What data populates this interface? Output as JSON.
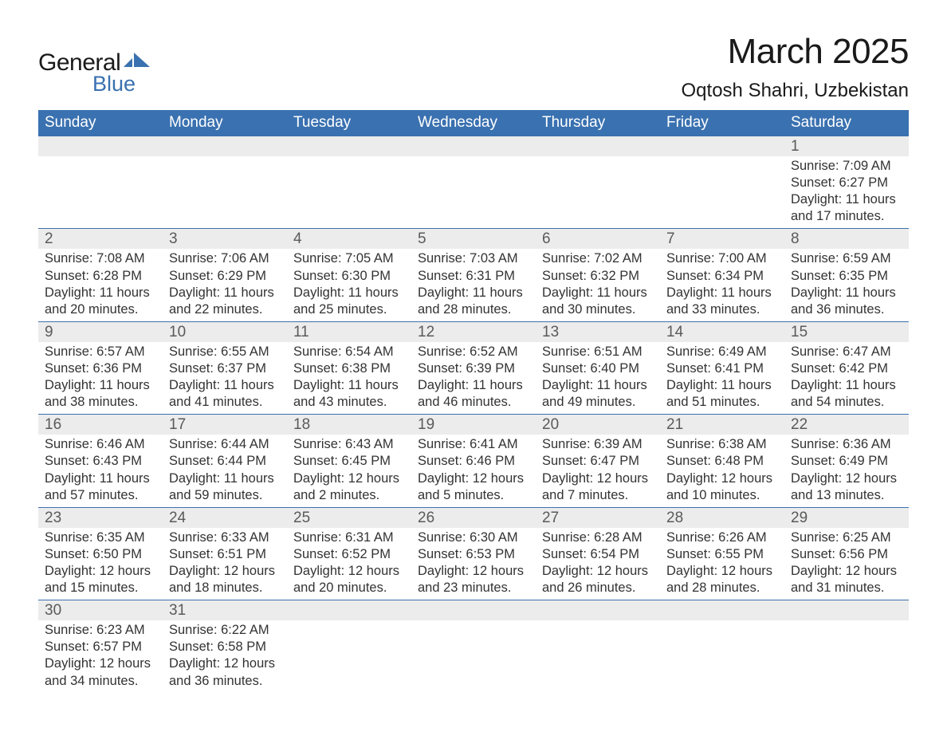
{
  "logo": {
    "text1": "General",
    "text2": "Blue",
    "shape_color": "#3a71b0"
  },
  "title": "March 2025",
  "location": "Oqtosh Shahri, Uzbekistan",
  "colors": {
    "header_bg": "#3a71b0",
    "header_text": "#ffffff",
    "daynum_bg": "#ececec",
    "body_text": "#333333",
    "border": "#3a71b0"
  },
  "fonts": {
    "title_size": 44,
    "location_size": 24,
    "header_size": 19,
    "daynum_size": 19,
    "cell_size": 16.5
  },
  "day_headers": [
    "Sunday",
    "Monday",
    "Tuesday",
    "Wednesday",
    "Thursday",
    "Friday",
    "Saturday"
  ],
  "weeks": [
    [
      null,
      null,
      null,
      null,
      null,
      null,
      {
        "n": "1",
        "sr": "Sunrise: 7:09 AM",
        "ss": "Sunset: 6:27 PM",
        "d1": "Daylight: 11 hours",
        "d2": "and 17 minutes."
      }
    ],
    [
      {
        "n": "2",
        "sr": "Sunrise: 7:08 AM",
        "ss": "Sunset: 6:28 PM",
        "d1": "Daylight: 11 hours",
        "d2": "and 20 minutes."
      },
      {
        "n": "3",
        "sr": "Sunrise: 7:06 AM",
        "ss": "Sunset: 6:29 PM",
        "d1": "Daylight: 11 hours",
        "d2": "and 22 minutes."
      },
      {
        "n": "4",
        "sr": "Sunrise: 7:05 AM",
        "ss": "Sunset: 6:30 PM",
        "d1": "Daylight: 11 hours",
        "d2": "and 25 minutes."
      },
      {
        "n": "5",
        "sr": "Sunrise: 7:03 AM",
        "ss": "Sunset: 6:31 PM",
        "d1": "Daylight: 11 hours",
        "d2": "and 28 minutes."
      },
      {
        "n": "6",
        "sr": "Sunrise: 7:02 AM",
        "ss": "Sunset: 6:32 PM",
        "d1": "Daylight: 11 hours",
        "d2": "and 30 minutes."
      },
      {
        "n": "7",
        "sr": "Sunrise: 7:00 AM",
        "ss": "Sunset: 6:34 PM",
        "d1": "Daylight: 11 hours",
        "d2": "and 33 minutes."
      },
      {
        "n": "8",
        "sr": "Sunrise: 6:59 AM",
        "ss": "Sunset: 6:35 PM",
        "d1": "Daylight: 11 hours",
        "d2": "and 36 minutes."
      }
    ],
    [
      {
        "n": "9",
        "sr": "Sunrise: 6:57 AM",
        "ss": "Sunset: 6:36 PM",
        "d1": "Daylight: 11 hours",
        "d2": "and 38 minutes."
      },
      {
        "n": "10",
        "sr": "Sunrise: 6:55 AM",
        "ss": "Sunset: 6:37 PM",
        "d1": "Daylight: 11 hours",
        "d2": "and 41 minutes."
      },
      {
        "n": "11",
        "sr": "Sunrise: 6:54 AM",
        "ss": "Sunset: 6:38 PM",
        "d1": "Daylight: 11 hours",
        "d2": "and 43 minutes."
      },
      {
        "n": "12",
        "sr": "Sunrise: 6:52 AM",
        "ss": "Sunset: 6:39 PM",
        "d1": "Daylight: 11 hours",
        "d2": "and 46 minutes."
      },
      {
        "n": "13",
        "sr": "Sunrise: 6:51 AM",
        "ss": "Sunset: 6:40 PM",
        "d1": "Daylight: 11 hours",
        "d2": "and 49 minutes."
      },
      {
        "n": "14",
        "sr": "Sunrise: 6:49 AM",
        "ss": "Sunset: 6:41 PM",
        "d1": "Daylight: 11 hours",
        "d2": "and 51 minutes."
      },
      {
        "n": "15",
        "sr": "Sunrise: 6:47 AM",
        "ss": "Sunset: 6:42 PM",
        "d1": "Daylight: 11 hours",
        "d2": "and 54 minutes."
      }
    ],
    [
      {
        "n": "16",
        "sr": "Sunrise: 6:46 AM",
        "ss": "Sunset: 6:43 PM",
        "d1": "Daylight: 11 hours",
        "d2": "and 57 minutes."
      },
      {
        "n": "17",
        "sr": "Sunrise: 6:44 AM",
        "ss": "Sunset: 6:44 PM",
        "d1": "Daylight: 11 hours",
        "d2": "and 59 minutes."
      },
      {
        "n": "18",
        "sr": "Sunrise: 6:43 AM",
        "ss": "Sunset: 6:45 PM",
        "d1": "Daylight: 12 hours",
        "d2": "and 2 minutes."
      },
      {
        "n": "19",
        "sr": "Sunrise: 6:41 AM",
        "ss": "Sunset: 6:46 PM",
        "d1": "Daylight: 12 hours",
        "d2": "and 5 minutes."
      },
      {
        "n": "20",
        "sr": "Sunrise: 6:39 AM",
        "ss": "Sunset: 6:47 PM",
        "d1": "Daylight: 12 hours",
        "d2": "and 7 minutes."
      },
      {
        "n": "21",
        "sr": "Sunrise: 6:38 AM",
        "ss": "Sunset: 6:48 PM",
        "d1": "Daylight: 12 hours",
        "d2": "and 10 minutes."
      },
      {
        "n": "22",
        "sr": "Sunrise: 6:36 AM",
        "ss": "Sunset: 6:49 PM",
        "d1": "Daylight: 12 hours",
        "d2": "and 13 minutes."
      }
    ],
    [
      {
        "n": "23",
        "sr": "Sunrise: 6:35 AM",
        "ss": "Sunset: 6:50 PM",
        "d1": "Daylight: 12 hours",
        "d2": "and 15 minutes."
      },
      {
        "n": "24",
        "sr": "Sunrise: 6:33 AM",
        "ss": "Sunset: 6:51 PM",
        "d1": "Daylight: 12 hours",
        "d2": "and 18 minutes."
      },
      {
        "n": "25",
        "sr": "Sunrise: 6:31 AM",
        "ss": "Sunset: 6:52 PM",
        "d1": "Daylight: 12 hours",
        "d2": "and 20 minutes."
      },
      {
        "n": "26",
        "sr": "Sunrise: 6:30 AM",
        "ss": "Sunset: 6:53 PM",
        "d1": "Daylight: 12 hours",
        "d2": "and 23 minutes."
      },
      {
        "n": "27",
        "sr": "Sunrise: 6:28 AM",
        "ss": "Sunset: 6:54 PM",
        "d1": "Daylight: 12 hours",
        "d2": "and 26 minutes."
      },
      {
        "n": "28",
        "sr": "Sunrise: 6:26 AM",
        "ss": "Sunset: 6:55 PM",
        "d1": "Daylight: 12 hours",
        "d2": "and 28 minutes."
      },
      {
        "n": "29",
        "sr": "Sunrise: 6:25 AM",
        "ss": "Sunset: 6:56 PM",
        "d1": "Daylight: 12 hours",
        "d2": "and 31 minutes."
      }
    ],
    [
      {
        "n": "30",
        "sr": "Sunrise: 6:23 AM",
        "ss": "Sunset: 6:57 PM",
        "d1": "Daylight: 12 hours",
        "d2": "and 34 minutes."
      },
      {
        "n": "31",
        "sr": "Sunrise: 6:22 AM",
        "ss": "Sunset: 6:58 PM",
        "d1": "Daylight: 12 hours",
        "d2": "and 36 minutes."
      },
      null,
      null,
      null,
      null,
      null
    ]
  ]
}
